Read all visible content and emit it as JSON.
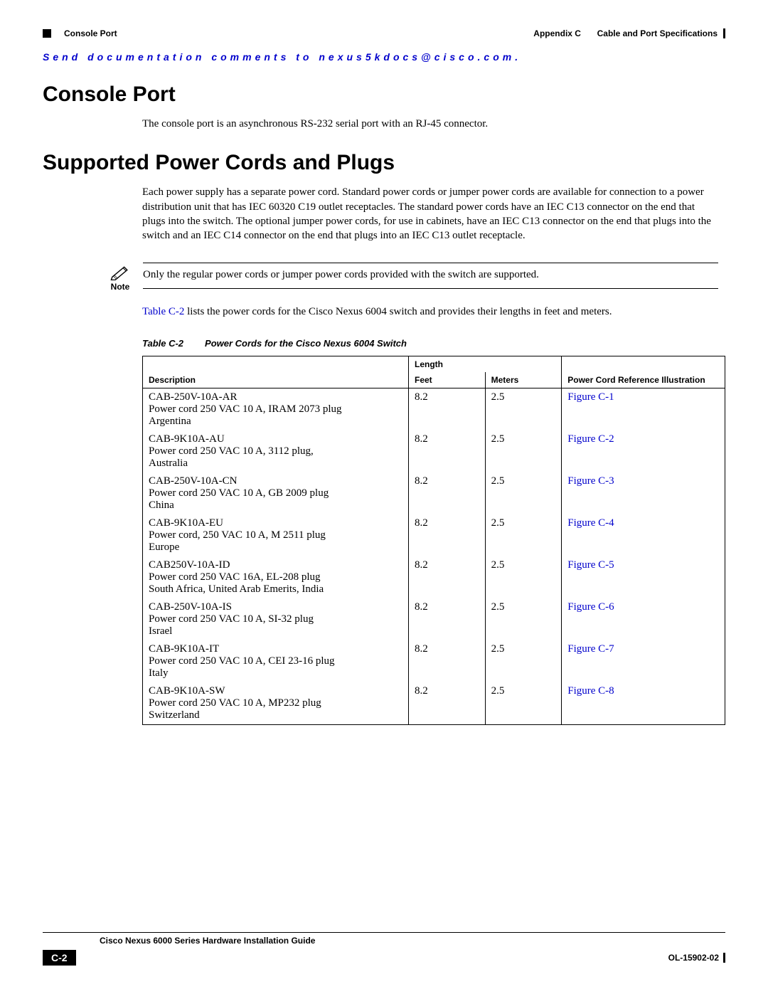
{
  "header": {
    "appendix_label": "Appendix C",
    "appendix_title": "Cable and Port Specifications",
    "section": "Console Port"
  },
  "email_line": "Send documentation comments to nexus5kdocs@cisco.com.",
  "sections": {
    "console_port": {
      "heading": "Console Port",
      "body": "The console port is an asynchronous RS-232 serial port with an RJ-45 connector."
    },
    "power_cords": {
      "heading": "Supported Power Cords and Plugs",
      "body": "Each power supply has a separate power cord. Standard power cords or jumper power cords are available for connection to a power distribution unit that has IEC 60320 C19 outlet receptacles. The standard power cords have an IEC C13 connector on the end that plugs into the switch. The optional jumper power cords, for use in cabinets, have an IEC C13 connector on the end that plugs into the switch and an IEC C14 connector on the end that plugs into an IEC C13 outlet receptacle.",
      "note_label": "Note",
      "note_text": "Only the regular power cords or jumper power cords provided with the switch are supported.",
      "intro_link": "Table C-2",
      "intro_rest": " lists the power cords for the Cisco Nexus 6004 switch and provides their lengths in feet and meters."
    }
  },
  "table": {
    "caption_num": "Table C-2",
    "caption_title": "Power Cords for the Cisco Nexus 6004 Switch",
    "headers": {
      "description": "Description",
      "length": "Length",
      "feet": "Feet",
      "meters": "Meters",
      "reference": "Power Cord Reference Illustration"
    },
    "rows": [
      {
        "code": "CAB-250V-10A-AR",
        "desc": "Power cord 250 VAC 10 A, IRAM 2073 plug",
        "region": "Argentina",
        "feet": "8.2",
        "meters": "2.5",
        "reference": "Figure C-1"
      },
      {
        "code": "CAB-9K10A-AU",
        "desc": "Power cord 250 VAC 10 A, 3112 plug,",
        "region": "Australia",
        "feet": "8.2",
        "meters": "2.5",
        "reference": "Figure C-2"
      },
      {
        "code": "CAB-250V-10A-CN",
        "desc": "Power cord 250 VAC 10 A, GB 2009 plug",
        "region": "China",
        "feet": "8.2",
        "meters": "2.5",
        "reference": "Figure C-3"
      },
      {
        "code": "CAB-9K10A-EU",
        "desc": "Power cord, 250 VAC 10 A, M 2511 plug",
        "region": "Europe",
        "feet": "8.2",
        "meters": "2.5",
        "reference": "Figure C-4"
      },
      {
        "code": "CAB250V-10A-ID",
        "desc": "Power cord 250 VAC 16A, EL-208 plug",
        "region": "South Africa, United Arab Emerits, India",
        "feet": "8.2",
        "meters": "2.5",
        "reference": "Figure C-5"
      },
      {
        "code": "CAB-250V-10A-IS",
        "desc": "Power cord 250 VAC 10 A, SI-32 plug",
        "region": "Israel",
        "feet": "8.2",
        "meters": "2.5",
        "reference": "Figure C-6"
      },
      {
        "code": "CAB-9K10A-IT",
        "desc": "Power cord 250 VAC 10 A, CEI 23-16 plug",
        "region": "Italy",
        "feet": "8.2",
        "meters": "2.5",
        "reference": "Figure C-7"
      },
      {
        "code": "CAB-9K10A-SW",
        "desc": "Power cord 250 VAC 10 A, MP232 plug",
        "region": "Switzerland",
        "feet": "8.2",
        "meters": "2.5",
        "reference": "Figure C-8"
      }
    ]
  },
  "footer": {
    "guide_title": "Cisco Nexus 6000 Series Hardware Installation Guide",
    "page_number": "C-2",
    "doc_number": "OL-15902-02"
  },
  "colors": {
    "link": "#0000cc",
    "black": "#000000",
    "white": "#ffffff"
  }
}
